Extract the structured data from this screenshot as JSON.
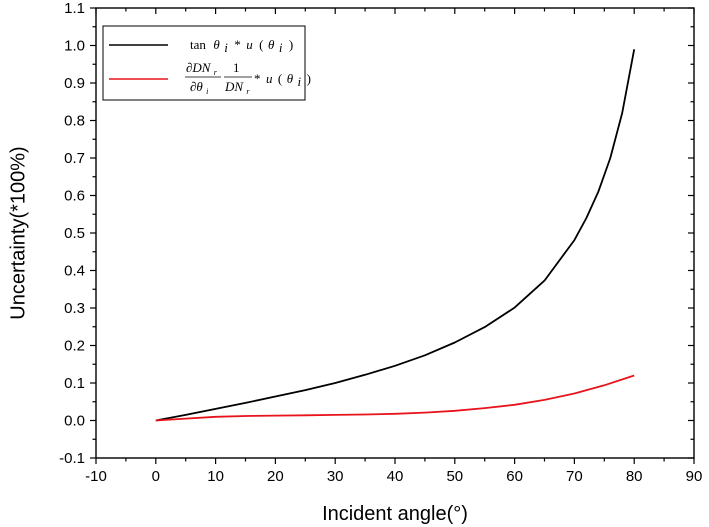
{
  "chart_data": {
    "type": "line",
    "title": "",
    "xlabel": "Incident angle(°)",
    "ylabel": "Uncertainty(*100%)",
    "xlim": [
      -10,
      90
    ],
    "ylim": [
      -0.1,
      1.1
    ],
    "x_ticks": [
      "-10",
      "0",
      "10",
      "20",
      "30",
      "40",
      "50",
      "60",
      "70",
      "80",
      "90"
    ],
    "y_ticks": [
      "-0.1",
      "0.0",
      "0.1",
      "0.2",
      "0.3",
      "0.4",
      "0.5",
      "0.6",
      "0.7",
      "0.8",
      "0.9",
      "1.0",
      "1.1"
    ],
    "grid": false,
    "legend_position": "top-left",
    "series": [
      {
        "name": "tanθi*u(θi)",
        "color": "#000000",
        "x": [
          0,
          5,
          10,
          15,
          20,
          25,
          30,
          35,
          40,
          45,
          50,
          55,
          60,
          65,
          70,
          72,
          74,
          76,
          78,
          80
        ],
        "values": [
          0.0,
          0.015,
          0.031,
          0.047,
          0.064,
          0.081,
          0.1,
          0.122,
          0.146,
          0.174,
          0.208,
          0.249,
          0.301,
          0.373,
          0.481,
          0.54,
          0.61,
          0.7,
          0.82,
          0.99
        ]
      },
      {
        "name": "∂DNr/∂θi · 1/DNr *u(θi)",
        "color": "#e8131b",
        "x": [
          0,
          5,
          10,
          15,
          20,
          25,
          30,
          35,
          40,
          45,
          50,
          55,
          60,
          65,
          70,
          75,
          80
        ],
        "values": [
          0.0,
          0.005,
          0.01,
          0.012,
          0.013,
          0.014,
          0.015,
          0.016,
          0.018,
          0.021,
          0.026,
          0.033,
          0.042,
          0.055,
          0.072,
          0.094,
          0.12
        ]
      }
    ],
    "legend": {
      "entry1": {
        "tan": "tan",
        "theta": "θ",
        "sub_i": "i",
        "star": "*",
        "u": "u",
        "lparen": "(",
        "rparen": ")"
      },
      "entry2": {
        "partial_dn": "∂DN",
        "sub_r": "r",
        "partial_theta": "∂θ",
        "sub_i": "i",
        "one": "1",
        "dn": "DN",
        "star": "*",
        "u": "u",
        "lparen": "(",
        "theta": "θ",
        "rparen": ")"
      }
    }
  }
}
